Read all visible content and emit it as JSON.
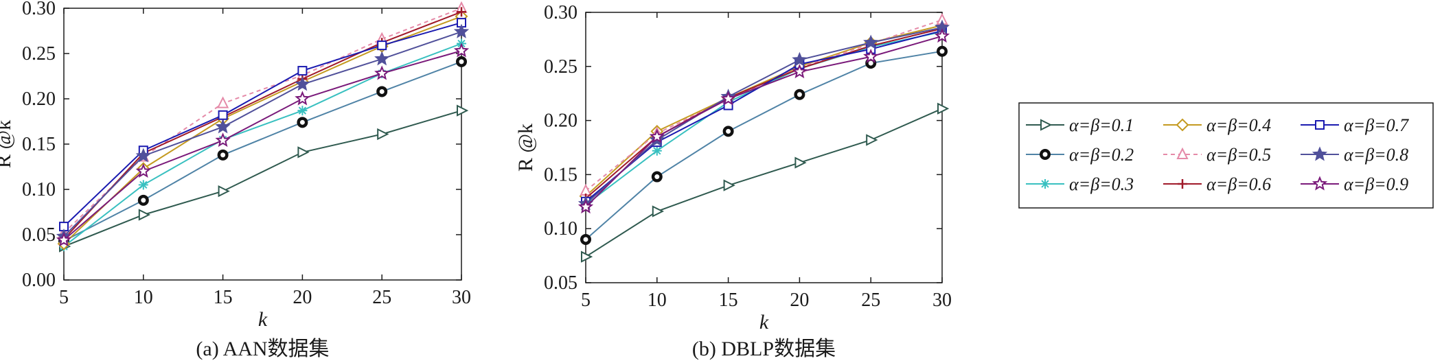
{
  "figure": {
    "captions": [
      "(a) AAN数据集",
      "(b) DBLP数据集"
    ]
  },
  "series_styles": [
    {
      "name": "α=β=0.1",
      "color": "#2f5a4f",
      "marker": "triangle-right",
      "dash": false
    },
    {
      "name": "α=β=0.2",
      "color": "#4f83a6",
      "marker": "bullseye",
      "dash": false
    },
    {
      "name": "α=β=0.3",
      "color": "#38c0c0",
      "marker": "asterisk",
      "dash": false
    },
    {
      "name": "α=β=0.4",
      "color": "#c49a20",
      "marker": "diamond",
      "dash": false
    },
    {
      "name": "α=β=0.5",
      "color": "#e58aa8",
      "marker": "triangle-up",
      "dash": true
    },
    {
      "name": "α=β=0.6",
      "color": "#a01a2a",
      "marker": "plus",
      "dash": false
    },
    {
      "name": "α=β=0.7",
      "color": "#1a1ab0",
      "marker": "square",
      "dash": false
    },
    {
      "name": "α=β=0.8",
      "color": "#50509a",
      "marker": "star",
      "dash": false
    },
    {
      "name": "α=β=0.9",
      "color": "#7a1a7a",
      "marker": "star-open",
      "dash": false
    }
  ],
  "chart_data": [
    {
      "type": "line",
      "title": "",
      "caption": "(a) AAN数据集",
      "xlabel": "k",
      "ylabel": "R @k",
      "x": [
        5,
        10,
        15,
        20,
        25,
        30
      ],
      "xlim": [
        5,
        30
      ],
      "ylim": [
        0.0,
        0.3
      ],
      "xticks": [
        "5",
        "10",
        "15",
        "20",
        "25",
        "30"
      ],
      "yticks": [
        "0.00",
        "0.05",
        "0.10",
        "0.15",
        "0.20",
        "0.25",
        "0.30"
      ],
      "grid": false,
      "series": [
        {
          "name": "α=β=0.1",
          "values": [
            0.037,
            0.072,
            0.098,
            0.141,
            0.161,
            0.187
          ]
        },
        {
          "name": "α=β=0.2",
          "values": [
            0.043,
            0.088,
            0.138,
            0.174,
            0.208,
            0.241
          ]
        },
        {
          "name": "α=β=0.3",
          "values": [
            0.037,
            0.105,
            0.155,
            0.187,
            0.228,
            0.261
          ]
        },
        {
          "name": "α=β=0.4",
          "values": [
            0.04,
            0.123,
            0.178,
            0.219,
            0.258,
            0.291
          ]
        },
        {
          "name": "α=β=0.5",
          "values": [
            0.052,
            0.136,
            0.195,
            0.226,
            0.266,
            0.3
          ]
        },
        {
          "name": "α=β=0.6",
          "values": [
            0.045,
            0.14,
            0.18,
            0.222,
            0.262,
            0.296
          ]
        },
        {
          "name": "α=β=0.7",
          "values": [
            0.059,
            0.143,
            0.182,
            0.231,
            0.259,
            0.284
          ]
        },
        {
          "name": "α=β=0.8",
          "values": [
            0.048,
            0.137,
            0.169,
            0.216,
            0.244,
            0.274
          ]
        },
        {
          "name": "α=β=0.9",
          "values": [
            0.044,
            0.12,
            0.154,
            0.2,
            0.228,
            0.253
          ]
        }
      ]
    },
    {
      "type": "line",
      "title": "",
      "caption": "(b) DBLP数据集",
      "xlabel": "k",
      "ylabel": "R @k",
      "x": [
        5,
        10,
        15,
        20,
        25,
        30
      ],
      "xlim": [
        5,
        30
      ],
      "ylim": [
        0.05,
        0.3
      ],
      "xticks": [
        "5",
        "10",
        "15",
        "20",
        "25",
        "30"
      ],
      "yticks": [
        "0.05",
        "0.10",
        "0.15",
        "0.20",
        "0.25",
        "0.30"
      ],
      "grid": false,
      "series": [
        {
          "name": "α=β=0.1",
          "values": [
            0.074,
            0.116,
            0.14,
            0.161,
            0.182,
            0.211
          ]
        },
        {
          "name": "α=β=0.2",
          "values": [
            0.09,
            0.148,
            0.19,
            0.224,
            0.253,
            0.264
          ]
        },
        {
          "name": "α=β=0.3",
          "values": [
            0.122,
            0.172,
            0.217,
            0.248,
            0.268,
            0.282
          ]
        },
        {
          "name": "α=β=0.4",
          "values": [
            0.13,
            0.19,
            0.221,
            0.25,
            0.272,
            0.288
          ]
        },
        {
          "name": "α=β=0.5",
          "values": [
            0.135,
            0.188,
            0.22,
            0.249,
            0.271,
            0.293
          ]
        },
        {
          "name": "α=β=0.6",
          "values": [
            0.128,
            0.185,
            0.221,
            0.248,
            0.269,
            0.285
          ]
        },
        {
          "name": "α=β=0.7",
          "values": [
            0.125,
            0.18,
            0.214,
            0.252,
            0.266,
            0.283
          ]
        },
        {
          "name": "α=β=0.8",
          "values": [
            0.123,
            0.182,
            0.222,
            0.256,
            0.272,
            0.286
          ]
        },
        {
          "name": "α=β=0.9",
          "values": [
            0.12,
            0.185,
            0.22,
            0.245,
            0.259,
            0.278
          ]
        }
      ]
    }
  ]
}
